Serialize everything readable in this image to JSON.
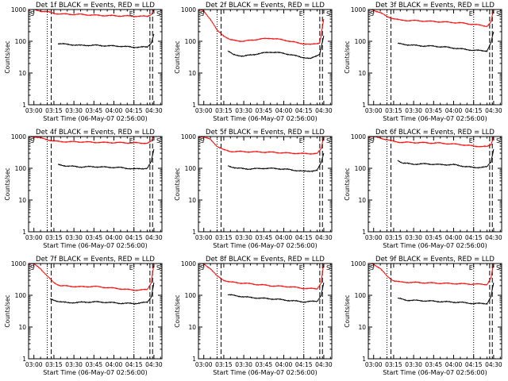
{
  "figure": {
    "xlabel": "Start Time (06-May-07 02:56:00)",
    "ylabel": "Counts/sec",
    "x_ticks": [
      "03:00",
      "03:15",
      "03:30",
      "03:45",
      "04:00",
      "04:15",
      "04:30"
    ],
    "y_ticks": [
      "1",
      "10",
      "100",
      "1000"
    ],
    "marker_s": "S",
    "marker_e": "E"
  },
  "chart_data": [
    {
      "type": "line",
      "title": "Det 1f BLACK = Events, RED = LLD",
      "y_scale": "log",
      "ylim": [
        1,
        1000
      ],
      "xlim": [
        "02:56",
        "04:36"
      ],
      "series": [
        {
          "name": "Events",
          "color": "#000000",
          "x": [
            "03:18",
            "03:25",
            "03:35",
            "03:45",
            "03:55",
            "04:05",
            "04:15",
            "04:25",
            "04:28",
            "04:30"
          ],
          "y": [
            85,
            80,
            74,
            75,
            72,
            70,
            65,
            66,
            90,
            170
          ]
        },
        {
          "name": "LLD",
          "color": "#ff0000",
          "x": [
            "02:56",
            "03:00",
            "03:05",
            "03:10",
            "03:15",
            "03:20",
            "03:35",
            "03:50",
            "04:05",
            "04:15",
            "04:25",
            "04:28",
            "04:30"
          ],
          "y": [
            1000,
            990,
            900,
            850,
            760,
            720,
            700,
            650,
            630,
            620,
            610,
            700,
            1000
          ]
        }
      ]
    },
    {
      "type": "line",
      "title": "Det 2f BLACK = Events, RED = LLD",
      "y_scale": "log",
      "ylim": [
        1,
        1000
      ],
      "xlim": [
        "02:56",
        "04:36"
      ],
      "series": [
        {
          "name": "Events",
          "color": "#000000",
          "x": [
            "03:18",
            "03:22",
            "03:30",
            "03:40",
            "03:50",
            "04:00",
            "04:10",
            "04:20",
            "04:27",
            "04:30"
          ],
          "y": [
            50,
            38,
            34,
            40,
            46,
            42,
            34,
            28,
            40,
            150
          ]
        },
        {
          "name": "LLD",
          "color": "#ff0000",
          "x": [
            "02:56",
            "03:00",
            "03:05",
            "03:10",
            "03:15",
            "03:20",
            "03:30",
            "03:40",
            "03:50",
            "04:00",
            "04:10",
            "04:20",
            "04:27",
            "04:30"
          ],
          "y": [
            1000,
            900,
            500,
            220,
            150,
            110,
            100,
            115,
            125,
            110,
            90,
            78,
            90,
            500
          ]
        }
      ]
    },
    {
      "type": "line",
      "title": "Det 3f BLACK = Events, RED = LLD",
      "y_scale": "log",
      "ylim": [
        1,
        1000
      ],
      "xlim": [
        "02:56",
        "04:36"
      ],
      "series": [
        {
          "name": "Events",
          "color": "#000000",
          "x": [
            "03:18",
            "03:25",
            "03:35",
            "03:45",
            "03:55",
            "04:05",
            "04:15",
            "04:25",
            "04:28",
            "04:30"
          ],
          "y": [
            85,
            78,
            72,
            70,
            65,
            58,
            52,
            50,
            90,
            200
          ]
        },
        {
          "name": "LLD",
          "color": "#ff0000",
          "x": [
            "02:56",
            "03:00",
            "03:05",
            "03:10",
            "03:15",
            "03:20",
            "03:35",
            "03:50",
            "04:05",
            "04:15",
            "04:25",
            "04:28",
            "04:30"
          ],
          "y": [
            1000,
            960,
            800,
            600,
            520,
            460,
            440,
            410,
            380,
            340,
            300,
            400,
            1000
          ]
        }
      ]
    },
    {
      "type": "line",
      "title": "Det 4f BLACK = Events, RED = LLD",
      "y_scale": "log",
      "ylim": [
        1,
        1000
      ],
      "xlim": [
        "02:56",
        "04:36"
      ],
      "series": [
        {
          "name": "Events",
          "color": "#000000",
          "x": [
            "03:18",
            "03:25",
            "03:35",
            "03:45",
            "03:55",
            "04:05",
            "04:15",
            "04:25",
            "04:28",
            "04:30"
          ],
          "y": [
            130,
            118,
            110,
            112,
            108,
            105,
            95,
            100,
            160,
            400
          ]
        },
        {
          "name": "LLD",
          "color": "#ff0000",
          "x": [
            "02:56",
            "03:00",
            "03:05",
            "03:10",
            "03:15",
            "03:20",
            "03:35",
            "03:50",
            "04:05",
            "04:15",
            "04:25",
            "04:28",
            "04:30"
          ],
          "y": [
            1000,
            990,
            900,
            800,
            720,
            690,
            680,
            650,
            640,
            630,
            620,
            700,
            1000
          ]
        }
      ]
    },
    {
      "type": "line",
      "title": "Det 5f BLACK = Events, RED = LLD",
      "y_scale": "log",
      "ylim": [
        1,
        1000
      ],
      "xlim": [
        "02:56",
        "04:36"
      ],
      "series": [
        {
          "name": "Events",
          "color": "#000000",
          "x": [
            "03:18",
            "03:25",
            "03:35",
            "03:45",
            "03:55",
            "04:05",
            "04:15",
            "04:25",
            "04:28",
            "04:30"
          ],
          "y": [
            120,
            100,
            95,
            100,
            98,
            90,
            80,
            85,
            150,
            300
          ]
        },
        {
          "name": "LLD",
          "color": "#ff0000",
          "x": [
            "02:56",
            "03:00",
            "03:05",
            "03:10",
            "03:15",
            "03:20",
            "03:35",
            "03:50",
            "04:05",
            "04:15",
            "04:25",
            "04:28",
            "04:30"
          ],
          "y": [
            1000,
            980,
            800,
            500,
            380,
            340,
            330,
            320,
            300,
            290,
            290,
            400,
            1000
          ]
        }
      ]
    },
    {
      "type": "line",
      "title": "Det 6f BLACK = Events, RED = LLD",
      "y_scale": "log",
      "ylim": [
        1,
        1000
      ],
      "xlim": [
        "02:56",
        "04:36"
      ],
      "series": [
        {
          "name": "Events",
          "color": "#000000",
          "x": [
            "03:18",
            "03:22",
            "03:30",
            "03:40",
            "03:50",
            "04:00",
            "04:08",
            "04:15",
            "04:25",
            "04:28",
            "04:30"
          ],
          "y": [
            180,
            145,
            135,
            138,
            130,
            130,
            115,
            105,
            110,
            160,
            400
          ]
        },
        {
          "name": "LLD",
          "color": "#ff0000",
          "x": [
            "02:56",
            "03:00",
            "03:05",
            "03:10",
            "03:15",
            "03:20",
            "03:35",
            "03:50",
            "04:05",
            "04:15",
            "04:25",
            "04:28",
            "04:30"
          ],
          "y": [
            1000,
            980,
            900,
            800,
            700,
            660,
            640,
            620,
            560,
            500,
            480,
            550,
            1000
          ]
        }
      ]
    },
    {
      "type": "line",
      "title": "Det 7f BLACK = Events, RED = LLD",
      "y_scale": "log",
      "ylim": [
        1,
        1000
      ],
      "xlim": [
        "02:56",
        "04:36"
      ],
      "series": [
        {
          "name": "Events",
          "color": "#000000",
          "x": [
            "03:12",
            "03:18",
            "03:25",
            "03:35",
            "03:45",
            "03:55",
            "04:05",
            "04:15",
            "04:25",
            "04:28",
            "04:30"
          ],
          "y": [
            75,
            65,
            58,
            60,
            62,
            60,
            56,
            55,
            60,
            90,
            250
          ]
        },
        {
          "name": "LLD",
          "color": "#ff0000",
          "x": [
            "02:56",
            "03:00",
            "03:05",
            "03:10",
            "03:15",
            "03:20",
            "03:35",
            "03:45",
            "03:55",
            "04:05",
            "04:15",
            "04:25",
            "04:28",
            "04:30"
          ],
          "y": [
            1000,
            960,
            700,
            400,
            250,
            200,
            185,
            190,
            175,
            160,
            145,
            150,
            250,
            1000
          ]
        }
      ]
    },
    {
      "type": "line",
      "title": "Det 8f BLACK = Events, RED = LLD",
      "y_scale": "log",
      "ylim": [
        1,
        1000
      ],
      "xlim": [
        "02:56",
        "04:36"
      ],
      "series": [
        {
          "name": "Events",
          "color": "#000000",
          "x": [
            "03:18",
            "03:25",
            "03:35",
            "03:45",
            "03:55",
            "04:05",
            "04:15",
            "04:25",
            "04:28",
            "04:30"
          ],
          "y": [
            105,
            95,
            85,
            80,
            75,
            68,
            62,
            65,
            100,
            250
          ]
        },
        {
          "name": "LLD",
          "color": "#ff0000",
          "x": [
            "02:56",
            "03:00",
            "03:05",
            "03:10",
            "03:15",
            "03:20",
            "03:35",
            "03:50",
            "04:05",
            "04:15",
            "04:25",
            "04:28",
            "04:30"
          ],
          "y": [
            1000,
            960,
            700,
            400,
            300,
            260,
            230,
            200,
            185,
            165,
            160,
            250,
            1000
          ]
        }
      ]
    },
    {
      "type": "line",
      "title": "Det 9f BLACK = Events, RED = LLD",
      "y_scale": "log",
      "ylim": [
        1,
        1000
      ],
      "xlim": [
        "02:56",
        "04:36"
      ],
      "series": [
        {
          "name": "Events",
          "color": "#000000",
          "x": [
            "03:18",
            "03:25",
            "03:35",
            "03:45",
            "03:55",
            "04:05",
            "04:15",
            "04:25",
            "04:28",
            "04:30"
          ],
          "y": [
            80,
            70,
            68,
            65,
            62,
            60,
            55,
            55,
            90,
            250
          ]
        },
        {
          "name": "LLD",
          "color": "#ff0000",
          "x": [
            "02:56",
            "03:00",
            "03:05",
            "03:10",
            "03:15",
            "03:20",
            "03:35",
            "03:50",
            "04:05",
            "04:15",
            "04:25",
            "04:28",
            "04:30"
          ],
          "y": [
            1000,
            960,
            700,
            400,
            290,
            260,
            250,
            240,
            230,
            225,
            220,
            350,
            1000
          ]
        }
      ]
    }
  ]
}
